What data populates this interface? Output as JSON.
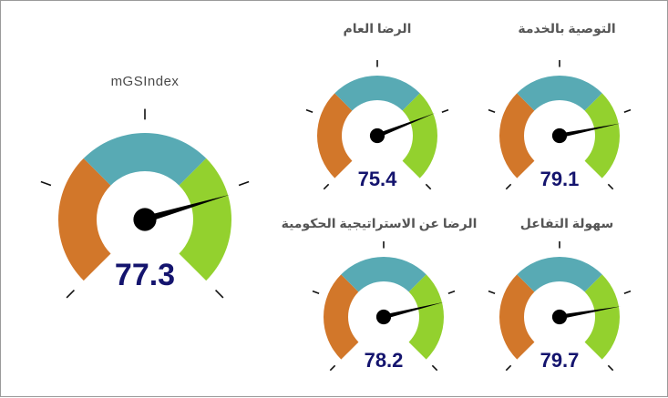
{
  "colors": {
    "low": "#d2772a",
    "mid": "#58aab4",
    "high": "#93d12e",
    "needle": "#000000",
    "value_text": "#14146e",
    "title_text": "#4a4a4a"
  },
  "scale": {
    "min": 0,
    "max": 100,
    "bands": [
      33.3,
      66.7
    ]
  },
  "gauges": [
    {
      "id": "mgsindex",
      "title": "mGSIndex",
      "value": 77.3,
      "value_label": "77.3"
    },
    {
      "id": "overall-satisfaction",
      "title": "الرضا العام",
      "value": 75.4,
      "value_label": "75.4"
    },
    {
      "id": "service-recommendation",
      "title": "التوصية بالخدمة",
      "value": 79.1,
      "value_label": "79.1"
    },
    {
      "id": "strategy-satisfaction",
      "title": "الرضا عن الاستراتيجية الحكومية",
      "value": 78.2,
      "value_label": "78.2"
    },
    {
      "id": "ease-of-interaction",
      "title": "سهولة التفاعل",
      "value": 79.7,
      "value_label": "79.7"
    }
  ]
}
